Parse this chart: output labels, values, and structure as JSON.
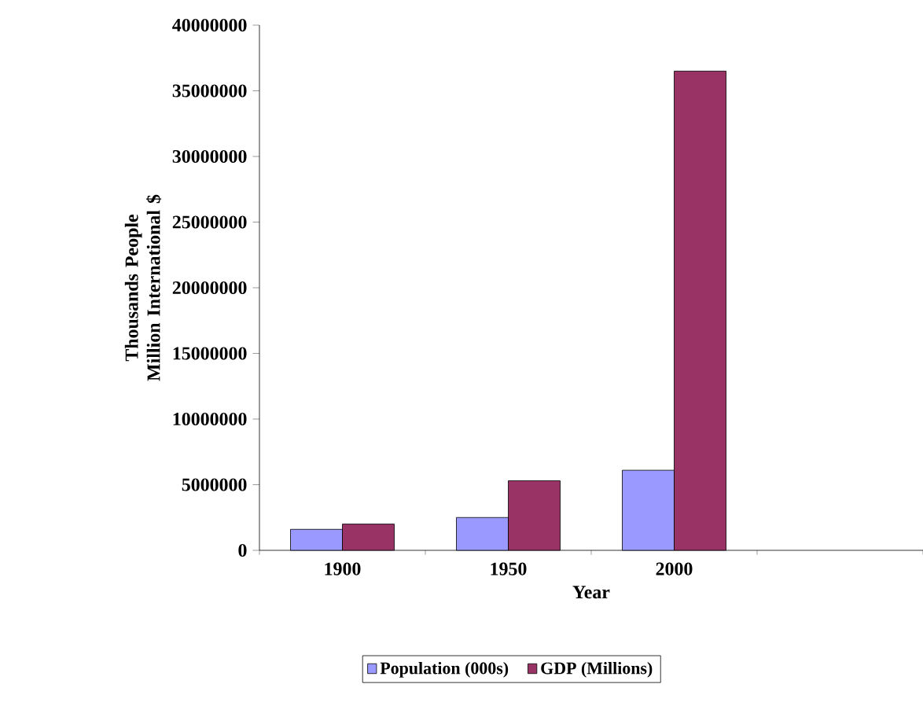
{
  "chart_data": {
    "type": "bar",
    "xlabel": "Year",
    "ylabel": "Thousands People Million International $",
    "categories": [
      "1900",
      "1950",
      "2000",
      null
    ],
    "series": [
      {
        "name": "Population (000s)",
        "color": "#9999ff",
        "values": [
          1600000,
          2500000,
          6100000,
          null
        ]
      },
      {
        "name": "GDP (Millions)",
        "color": "#993366",
        "values": [
          2000000,
          5300000,
          36500000,
          null
        ]
      }
    ],
    "ylim": [
      0,
      40000000
    ],
    "yticks": [
      0,
      5000000,
      10000000,
      15000000,
      20000000,
      25000000,
      30000000,
      35000000,
      40000000
    ],
    "grid": false,
    "legend": "bottom"
  }
}
